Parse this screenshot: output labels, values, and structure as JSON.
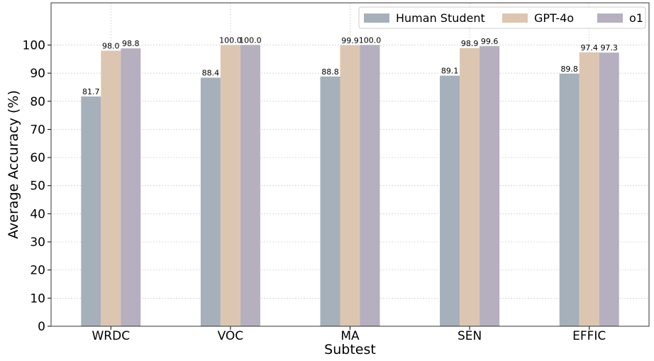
{
  "chart_data": {
    "type": "bar",
    "title": "",
    "xlabel": "Subtest",
    "ylabel": "Average Accuracy (%)",
    "categories": [
      "WRDC",
      "VOC",
      "MA",
      "SEN",
      "EFFIC"
    ],
    "ylim": [
      0,
      115
    ],
    "yticks": [
      0,
      10,
      20,
      30,
      40,
      50,
      60,
      70,
      80,
      90,
      100
    ],
    "grid": true,
    "legend_position": "top-right",
    "series": [
      {
        "name": "Human Student",
        "color": "#a6b0bb",
        "values": [
          81.7,
          88.4,
          88.8,
          89.1,
          89.8
        ],
        "labels": [
          "81.7",
          "88.4",
          "88.8",
          "89.1",
          "89.8"
        ]
      },
      {
        "name": "GPT-4o",
        "color": "#dcc6b1",
        "values": [
          98.0,
          100.0,
          99.9,
          98.9,
          97.4
        ],
        "labels": [
          "98.0",
          "100.0",
          "99.9",
          "98.9",
          "97.4"
        ]
      },
      {
        "name": "o1",
        "color": "#b6afbf",
        "values": [
          98.8,
          100.0,
          100.0,
          99.6,
          97.3
        ],
        "labels": [
          "98.8",
          "100.0",
          "100.0",
          "99.6",
          "97.3"
        ]
      }
    ]
  }
}
